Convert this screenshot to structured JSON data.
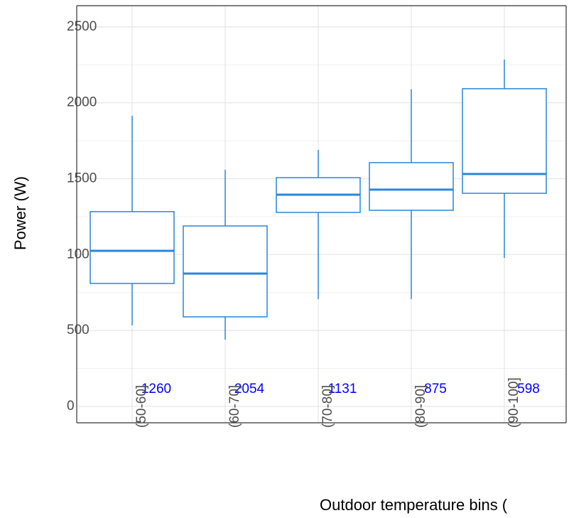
{
  "chart_data": {
    "type": "boxplot",
    "x_label": "Outdoor temperature bins (",
    "y_label": "Power (W)",
    "categories": [
      "(50-60]",
      "(60-70]",
      "(70-80]",
      "(80-90]",
      "(90-100]"
    ],
    "boxes": [
      {
        "whisker_low": 534,
        "q1": 810,
        "median": 1025,
        "q3": 1283,
        "whisker_high": 1915
      },
      {
        "whisker_low": 440,
        "q1": 590,
        "median": 875,
        "q3": 1189,
        "whisker_high": 1559
      },
      {
        "whisker_low": 707,
        "q1": 1278,
        "median": 1395,
        "q3": 1507,
        "whisker_high": 1690
      },
      {
        "whisker_low": 707,
        "q1": 1292,
        "median": 1428,
        "q3": 1606,
        "whisker_high": 2090
      },
      {
        "whisker_low": 978,
        "q1": 1404,
        "median": 1531,
        "q3": 2093,
        "whisker_high": 2285
      }
    ],
    "counts": [
      1260,
      2054,
      1131,
      875,
      598
    ],
    "color": "#2b86d9",
    "count_color": "#0000ff",
    "ylim": [
      -108,
      2640
    ],
    "yticks": [
      0,
      500,
      1000,
      1500,
      2000,
      2500
    ],
    "grid": true,
    "minor_grid": true
  }
}
